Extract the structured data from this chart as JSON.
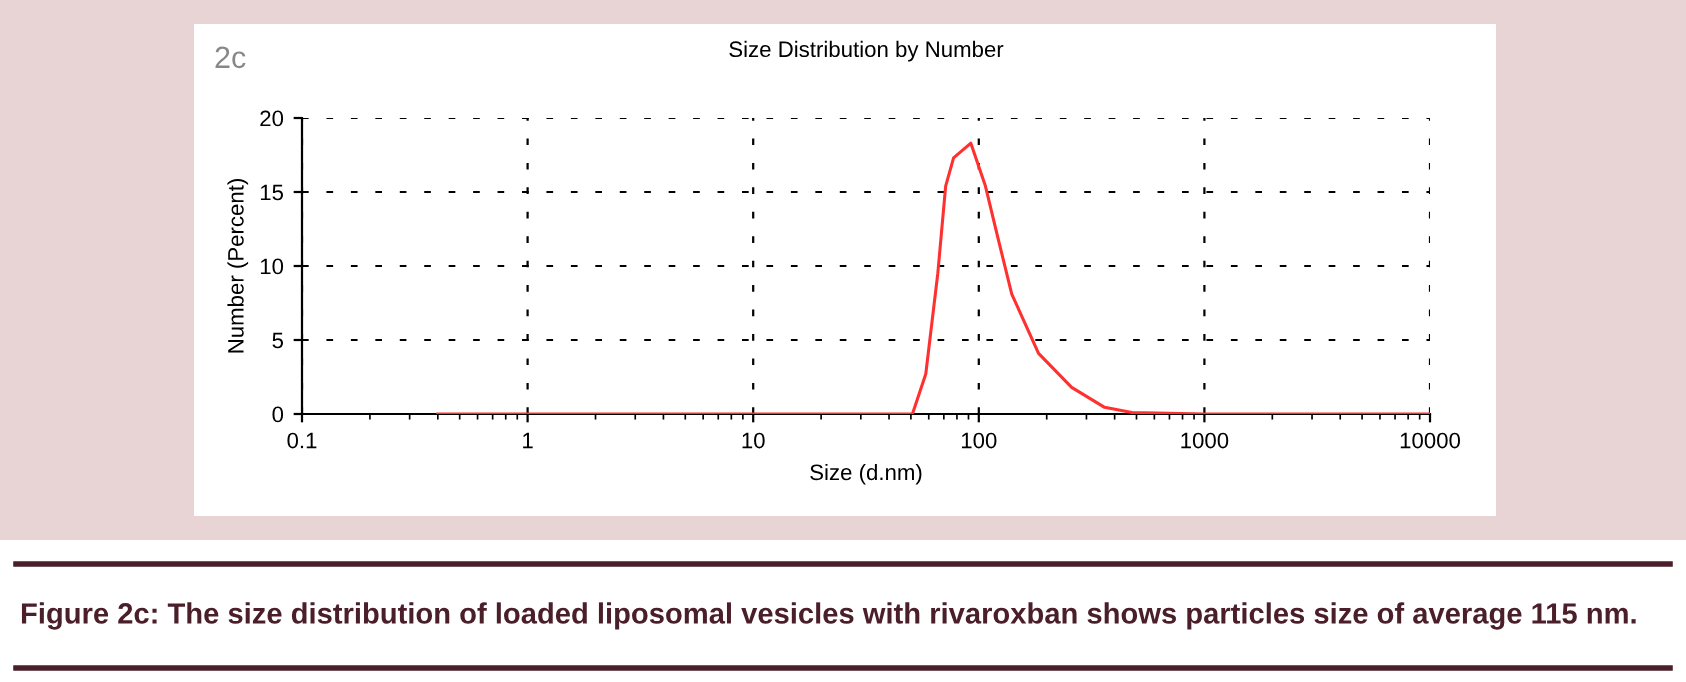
{
  "chart_data": {
    "type": "line",
    "title": "Size Distribution by Number",
    "xlabel": "Size (d.nm)",
    "ylabel": "Number (Percent)",
    "annotations": [
      "2c",
      "Figure 2c: The size distribution of loaded liposomal vesicles with rivaroxban shows particles size of average 115 nm."
    ],
    "series": [
      {
        "color": "#ff3030",
        "x": [
          0.4,
          50.8,
          58.2,
          65.8,
          71.3,
          77.3,
          92.2,
          107,
          122,
          140,
          184,
          258,
          361,
          477,
          1000,
          10000
        ],
        "values": [
          0,
          0,
          2.7,
          9.5,
          15.4,
          17.3,
          18.3,
          15.4,
          11.8,
          8.1,
          4.1,
          1.8,
          0.45,
          0.1,
          0,
          0
        ]
      }
    ],
    "log": "x",
    "xlim": [
      0.1,
      10000
    ],
    "xticks": [
      0.1,
      1,
      10,
      100,
      1000,
      10000
    ],
    "ylim": [
      0,
      20
    ],
    "yticks": [
      0,
      5,
      10,
      15,
      20
    ],
    "grid": true,
    "marker": "none",
    "line_style": "solid"
  }
}
